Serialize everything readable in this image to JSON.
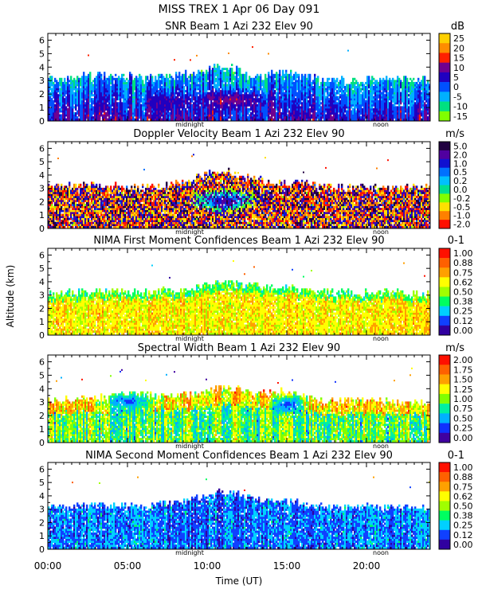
{
  "figure": {
    "title": "MISS TREX     1 Apr 06 Day 091",
    "ylabel": "Altitude (km)",
    "xlabel": "Time (UT)",
    "time_ticks": [
      "00:00",
      "05:00",
      "10:00",
      "15:00",
      "20:00"
    ],
    "midnight_label": "midnight",
    "noon_label": "noon"
  },
  "chart_data": [
    {
      "type": "heatmap",
      "title": "SNR Beam 1 Azi 232 Elev 90",
      "unit": "dB",
      "xlim": [
        0,
        24
      ],
      "ylim": [
        0,
        6.5
      ],
      "y_ticks": [
        0,
        1,
        2,
        3,
        4,
        5,
        6
      ],
      "colorbar_labels": [
        "25",
        "20",
        "15",
        "10",
        "5",
        "0",
        "-5",
        "-10",
        "-15"
      ],
      "colorbar_colors": [
        "#ffd000",
        "#ff8c00",
        "#ff2000",
        "#700090",
        "#2000c0",
        "#0050ff",
        "#00b0ff",
        "#00e080",
        "#80ff00"
      ],
      "echo_top_km": [
        [
          0,
          3.0
        ],
        [
          2,
          3.2
        ],
        [
          4,
          3.4
        ],
        [
          6,
          3.1
        ],
        [
          8,
          3.3
        ],
        [
          10,
          3.8
        ],
        [
          11,
          4.1
        ],
        [
          12,
          3.7
        ],
        [
          13,
          3.2
        ],
        [
          15,
          3.6
        ],
        [
          17,
          3.0
        ],
        [
          19,
          2.9
        ],
        [
          21,
          3.1
        ],
        [
          24,
          3.0
        ]
      ],
      "cores": [
        {
          "t": 11.5,
          "h": 1.5,
          "w": 3.0,
          "v": 0.35
        },
        {
          "t": 7.5,
          "h": 1.4,
          "w": 2.0,
          "v": 0.45
        }
      ]
    },
    {
      "type": "heatmap",
      "title": "Doppler Velocity Beam 1 Azi 232 Elev 90",
      "unit": "m/s",
      "xlim": [
        0,
        24
      ],
      "ylim": [
        0,
        6.5
      ],
      "y_ticks": [
        0,
        1,
        2,
        3,
        4,
        5,
        6
      ],
      "colorbar_labels": [
        "5.0",
        "2.0",
        "1.0",
        "0.5",
        "0.2",
        "0.0",
        "-0.2",
        "-0.5",
        "-1.0",
        "-2.0"
      ],
      "colorbar_colors": [
        "#200040",
        "#5000a0",
        "#1010d0",
        "#0070ff",
        "#00c0ff",
        "#00e090",
        "#80ff00",
        "#ffe000",
        "#ff8000",
        "#ff1000"
      ],
      "echo_top_km": [
        [
          0,
          3.1
        ],
        [
          3,
          3.2
        ],
        [
          6,
          3.0
        ],
        [
          8,
          3.3
        ],
        [
          10,
          4.0
        ],
        [
          11,
          4.3
        ],
        [
          12,
          3.8
        ],
        [
          14,
          3.4
        ],
        [
          16,
          3.3
        ],
        [
          18,
          3.0
        ],
        [
          21,
          3.0
        ],
        [
          24,
          3.0
        ]
      ],
      "cores": [
        {
          "t": 11.0,
          "h": 2.0,
          "w": 2.5,
          "v": 0.12
        }
      ]
    },
    {
      "type": "heatmap",
      "title": "NIMA First Moment Confidences Beam 1 Azi 232 Elev 90",
      "unit": "0-1",
      "xlim": [
        0,
        24
      ],
      "ylim": [
        0,
        6.5
      ],
      "y_ticks": [
        0,
        1,
        2,
        3,
        4,
        5,
        6
      ],
      "colorbar_labels": [
        "1.00",
        "0.88",
        "0.75",
        "0.62",
        "0.50",
        "0.38",
        "0.25",
        "0.12",
        "0.00"
      ],
      "colorbar_colors": [
        "#ff1000",
        "#ff6000",
        "#ffa000",
        "#ffff00",
        "#a0ff00",
        "#00ff60",
        "#00d0ff",
        "#1040ff",
        "#3000a0"
      ],
      "echo_top_km": [
        [
          0,
          3.0
        ],
        [
          3,
          3.2
        ],
        [
          6,
          3.1
        ],
        [
          9,
          3.4
        ],
        [
          11,
          3.9
        ],
        [
          13,
          3.6
        ],
        [
          15,
          3.4
        ],
        [
          18,
          3.1
        ],
        [
          21,
          3.1
        ],
        [
          24,
          3.0
        ]
      ],
      "cores": []
    },
    {
      "type": "heatmap",
      "title": "Spectral Width Beam 1 Azi 232 Elev 90",
      "unit": "m/s",
      "xlim": [
        0,
        24
      ],
      "ylim": [
        0,
        6.5
      ],
      "y_ticks": [
        0,
        1,
        2,
        3,
        4,
        5,
        6
      ],
      "colorbar_labels": [
        "2.00",
        "1.75",
        "1.50",
        "1.25",
        "1.00",
        "0.75",
        "0.50",
        "0.25",
        "0.00"
      ],
      "colorbar_colors": [
        "#ff1000",
        "#ff6000",
        "#ffa000",
        "#ffff00",
        "#80ff00",
        "#00f0a0",
        "#00b0ff",
        "#1030ff",
        "#4000a0"
      ],
      "echo_top_km": [
        [
          0,
          3.0
        ],
        [
          3,
          3.2
        ],
        [
          5,
          3.6
        ],
        [
          7,
          3.3
        ],
        [
          9,
          3.5
        ],
        [
          11,
          4.1
        ],
        [
          13,
          3.5
        ],
        [
          15,
          3.8
        ],
        [
          17,
          3.0
        ],
        [
          21,
          3.0
        ],
        [
          24,
          2.9
        ]
      ],
      "cores": [
        {
          "t": 5.0,
          "h": 3.0,
          "w": 2.5,
          "v": 0.85
        },
        {
          "t": 15.0,
          "h": 2.8,
          "w": 1.5,
          "v": 0.9
        }
      ]
    },
    {
      "type": "heatmap",
      "title": "NIMA Second Moment Confidences Beam 1 Azi 232 Elev 90",
      "unit": "0-1",
      "xlim": [
        0,
        24
      ],
      "ylim": [
        0,
        6.5
      ],
      "y_ticks": [
        0,
        1,
        2,
        3,
        4,
        5,
        6
      ],
      "colorbar_labels": [
        "1.00",
        "0.88",
        "0.75",
        "0.62",
        "0.50",
        "0.38",
        "0.25",
        "0.12",
        "0.00"
      ],
      "colorbar_colors": [
        "#ff1000",
        "#ff6000",
        "#ffa000",
        "#ffff00",
        "#a0ff00",
        "#00ff60",
        "#00d0ff",
        "#1040ff",
        "#3000a0"
      ],
      "echo_top_km": [
        [
          0,
          3.0
        ],
        [
          3,
          3.2
        ],
        [
          6,
          3.1
        ],
        [
          9,
          3.6
        ],
        [
          11,
          4.3
        ],
        [
          13,
          3.6
        ],
        [
          15,
          3.5
        ],
        [
          18,
          3.1
        ],
        [
          21,
          3.1
        ],
        [
          24,
          3.0
        ]
      ],
      "cores": []
    }
  ]
}
